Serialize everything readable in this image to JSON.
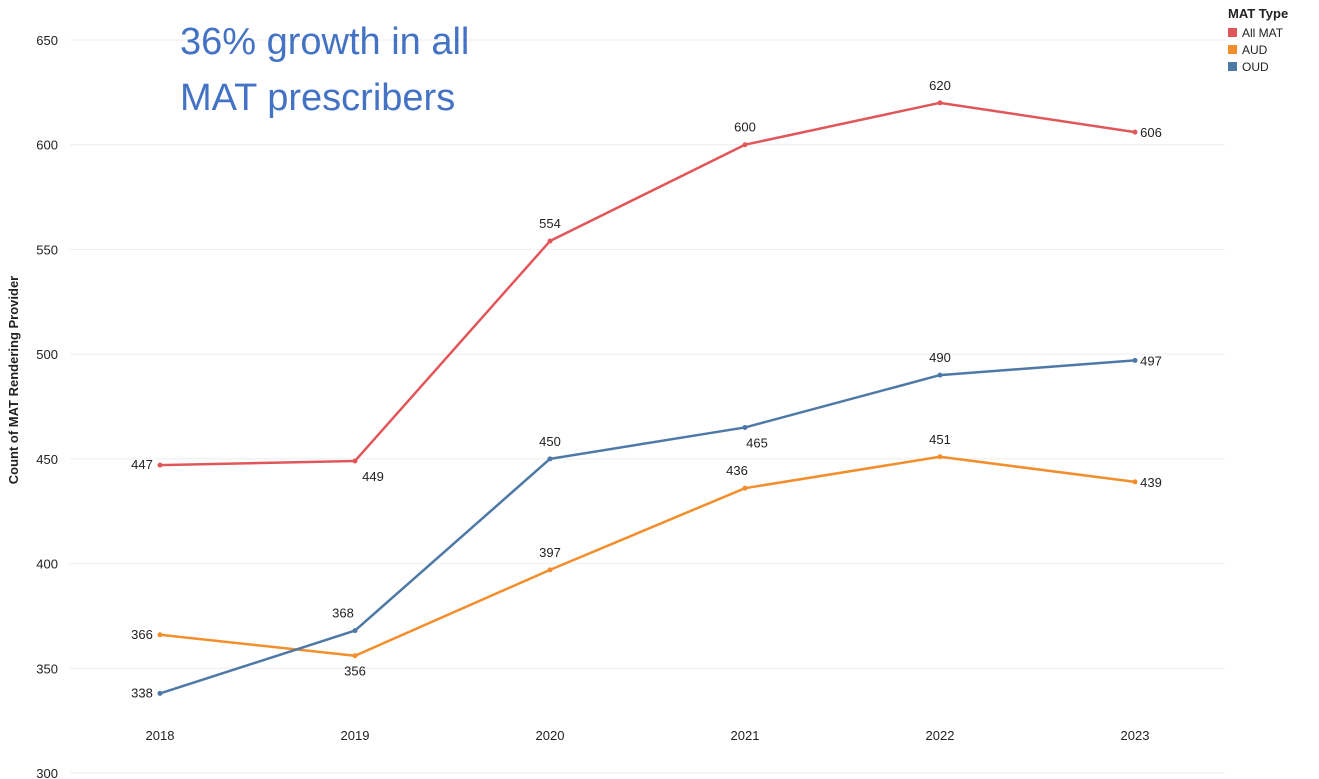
{
  "annotation": "36% growth in all MAT prescribers",
  "legend": {
    "title": "MAT Type"
  },
  "chart_data": {
    "type": "line",
    "title": "",
    "xlabel": "",
    "ylabel": "Count of MAT Rendering Provider",
    "categories": [
      "2018",
      "2019",
      "2020",
      "2021",
      "2022",
      "2023"
    ],
    "ylim": [
      300,
      650
    ],
    "yticks": [
      300,
      350,
      400,
      450,
      500,
      550,
      600,
      650
    ],
    "grid": true,
    "legend_position": "top-right",
    "series": [
      {
        "name": "All MAT",
        "color": "#e15759",
        "values": [
          447,
          449,
          554,
          600,
          620,
          606
        ]
      },
      {
        "name": "AUD",
        "color": "#f28e2b",
        "values": [
          366,
          356,
          397,
          436,
          451,
          439
        ]
      },
      {
        "name": "OUD",
        "color": "#4e79a7",
        "values": [
          338,
          368,
          450,
          465,
          490,
          497
        ]
      }
    ]
  }
}
